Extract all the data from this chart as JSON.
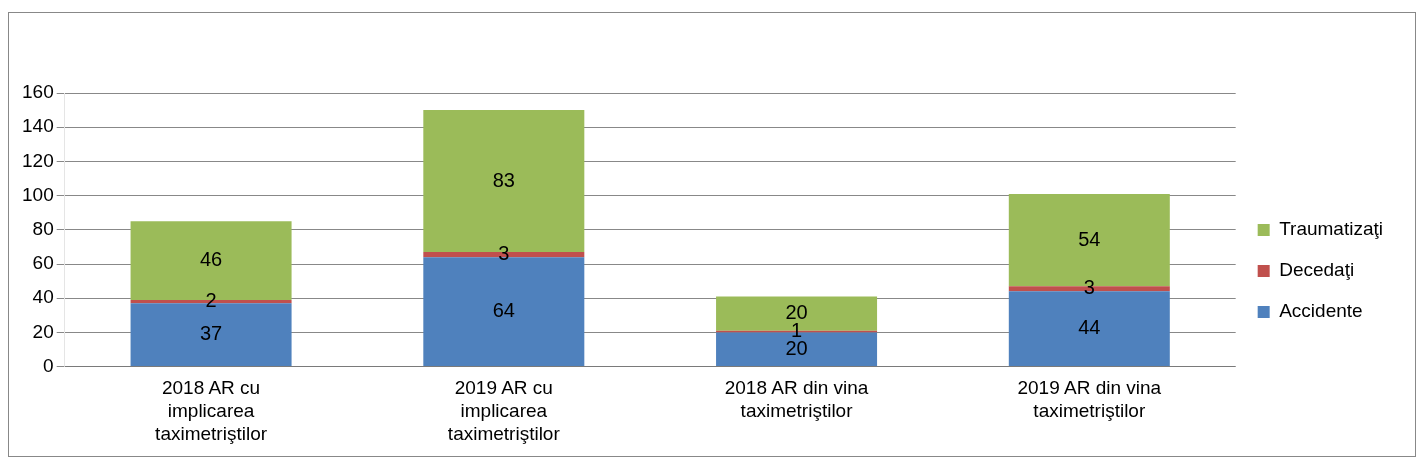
{
  "chart_data": {
    "type": "bar",
    "stacked": true,
    "categories": [
      "2018 AR cu implicarea taximetriştilor",
      "2019 AR cu implicarea taximetriştilor",
      "2018 AR din vina taximetriştilor",
      "2019 AR din vina taximetriştilor"
    ],
    "series": [
      {
        "name": "Accidente",
        "color": "#4f81bd",
        "values": [
          37,
          64,
          20,
          44
        ]
      },
      {
        "name": "Decedaţi",
        "color": "#c0504d",
        "values": [
          2,
          3,
          1,
          3
        ]
      },
      {
        "name": "Traumatizaţi",
        "color": "#9bbb59",
        "values": [
          46,
          83,
          20,
          54
        ]
      }
    ],
    "ylim": [
      0,
      160
    ],
    "yticks": [
      0,
      20,
      40,
      60,
      80,
      100,
      120,
      140,
      160
    ],
    "grid": "y",
    "legend": "right",
    "data_labels": true
  }
}
